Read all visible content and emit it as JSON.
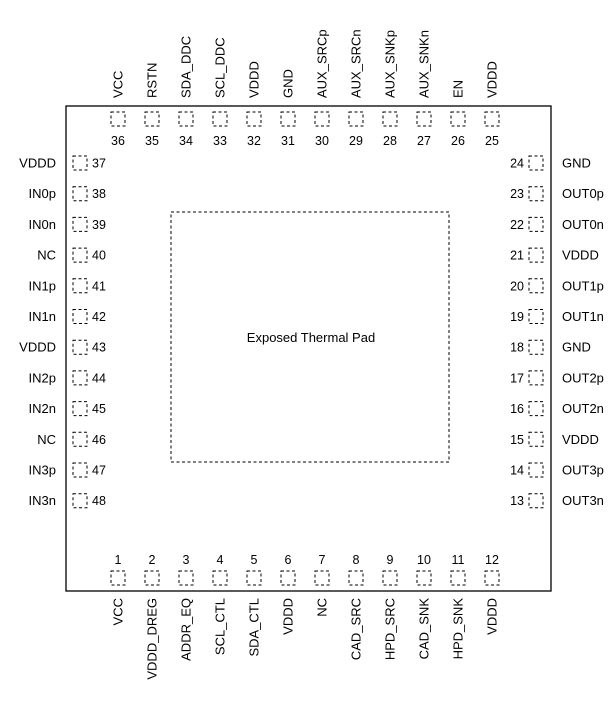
{
  "thermal_pad_label": "Exposed Thermal Pad",
  "pins": {
    "bottom": [
      {
        "num": "1",
        "name": "VCC"
      },
      {
        "num": "2",
        "name": "VDDD_DREG"
      },
      {
        "num": "3",
        "name": "ADDR_EQ"
      },
      {
        "num": "4",
        "name": "SCL_CTL"
      },
      {
        "num": "5",
        "name": "SDA_CTL"
      },
      {
        "num": "6",
        "name": "VDDD"
      },
      {
        "num": "7",
        "name": "NC"
      },
      {
        "num": "8",
        "name": "CAD_SRC"
      },
      {
        "num": "9",
        "name": "HPD_SRC"
      },
      {
        "num": "10",
        "name": "CAD_SNK"
      },
      {
        "num": "11",
        "name": "HPD_SNK"
      },
      {
        "num": "12",
        "name": "VDDD"
      }
    ],
    "right": [
      {
        "num": "13",
        "name": "OUT3n"
      },
      {
        "num": "14",
        "name": "OUT3p"
      },
      {
        "num": "15",
        "name": "VDDD"
      },
      {
        "num": "16",
        "name": "OUT2n"
      },
      {
        "num": "17",
        "name": "OUT2p"
      },
      {
        "num": "18",
        "name": "GND"
      },
      {
        "num": "19",
        "name": "OUT1n"
      },
      {
        "num": "20",
        "name": "OUT1p"
      },
      {
        "num": "21",
        "name": "VDDD"
      },
      {
        "num": "22",
        "name": "OUT0n"
      },
      {
        "num": "23",
        "name": "OUT0p"
      },
      {
        "num": "24",
        "name": "GND"
      }
    ],
    "top": [
      {
        "num": "25",
        "name": "VDDD"
      },
      {
        "num": "26",
        "name": "EN"
      },
      {
        "num": "27",
        "name": "AUX_SNKn"
      },
      {
        "num": "28",
        "name": "AUX_SNKp"
      },
      {
        "num": "29",
        "name": "AUX_SRCn"
      },
      {
        "num": "30",
        "name": "AUX_SRCp"
      },
      {
        "num": "31",
        "name": "GND"
      },
      {
        "num": "32",
        "name": "VDDD"
      },
      {
        "num": "33",
        "name": "SCL_DDC"
      },
      {
        "num": "34",
        "name": "SDA_DDC"
      },
      {
        "num": "35",
        "name": "RSTN"
      },
      {
        "num": "36",
        "name": "VCC"
      }
    ],
    "left": [
      {
        "num": "37",
        "name": "VDDD"
      },
      {
        "num": "38",
        "name": "IN0p"
      },
      {
        "num": "39",
        "name": "IN0n"
      },
      {
        "num": "40",
        "name": "NC"
      },
      {
        "num": "41",
        "name": "IN1p"
      },
      {
        "num": "42",
        "name": "IN1n"
      },
      {
        "num": "43",
        "name": "VDDD"
      },
      {
        "num": "44",
        "name": "IN2p"
      },
      {
        "num": "45",
        "name": "IN2n"
      },
      {
        "num": "46",
        "name": "NC"
      },
      {
        "num": "47",
        "name": "IN3p"
      },
      {
        "num": "48",
        "name": "IN3n"
      }
    ]
  }
}
